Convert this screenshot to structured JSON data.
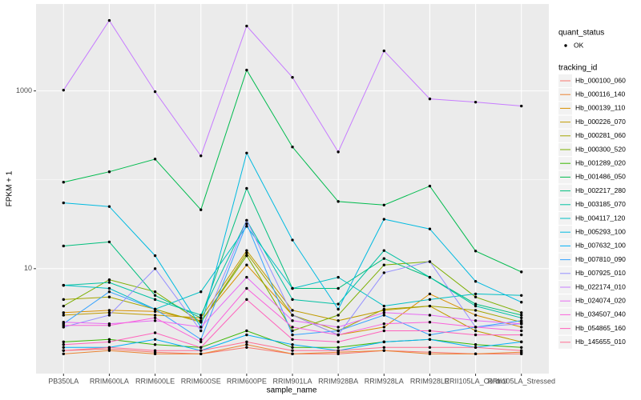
{
  "chart_data": {
    "type": "line",
    "xlabel": "sample_name",
    "ylabel": "FPKM + 1",
    "log_y": true,
    "grid": true,
    "point_color": "#000000",
    "shape_legend": {
      "title": "quant_status",
      "labels": [
        "OK"
      ]
    },
    "legend_title": "tracking_id",
    "legend_position": "right",
    "categories": [
      "PB350LA",
      "RRIM600LA",
      "RRIM600LE",
      "RRIM600SE",
      "RRIM600PE",
      "RRIM901LA",
      "RRIM928BA",
      "RRIM928LA",
      "RRIM928LE",
      "RRII105LA_Control",
      "RRII105LA_Stressed"
    ],
    "ylim": [
      0.66,
      9500
    ],
    "yticks": [
      10,
      1000
    ],
    "series": [
      {
        "name": "Hb_000100_060",
        "color": "#F8766D",
        "values": [
          1.2,
          1.25,
          1.15,
          1.1,
          1.3,
          1.1,
          1.1,
          1.2,
          1.15,
          1.1,
          1.1
        ]
      },
      {
        "name": "Hb_000116_140",
        "color": "#EA8331",
        "values": [
          1.1,
          1.2,
          1.1,
          1.1,
          1.4,
          1.1,
          1.15,
          1.2,
          1.1,
          1.1,
          1.15
        ]
      },
      {
        "name": "Hb_000139_110",
        "color": "#D89000",
        "values": [
          3.2,
          3.4,
          3.3,
          2.6,
          11,
          3.0,
          1.8,
          2.2,
          5.2,
          3.0,
          2.2
        ]
      },
      {
        "name": "Hb_000226_070",
        "color": "#C09B00",
        "values": [
          3.0,
          3.2,
          3.0,
          2.8,
          16,
          3.4,
          2.6,
          3.4,
          3.8,
          2.0,
          1.5
        ]
      },
      {
        "name": "Hb_000281_060",
        "color": "#A3A500",
        "values": [
          4.5,
          4.8,
          3.5,
          2.5,
          15,
          3.0,
          2.0,
          3.5,
          3.8,
          3.4,
          2.5
        ]
      },
      {
        "name": "Hb_000300_520",
        "color": "#7CAE00",
        "values": [
          3.8,
          7.5,
          5.5,
          2.5,
          14,
          2.0,
          3.0,
          11,
          12,
          4.8,
          3.2
        ]
      },
      {
        "name": "Hb_001289_020",
        "color": "#39B600",
        "values": [
          1.5,
          1.6,
          1.4,
          1.3,
          2.0,
          1.3,
          1.3,
          1.5,
          1.6,
          1.4,
          1.3
        ]
      },
      {
        "name": "Hb_001486_050",
        "color": "#00BB4E",
        "values": [
          94,
          123,
          171,
          46,
          1715,
          234,
          57,
          52,
          85,
          15.8,
          9.2
        ]
      },
      {
        "name": "Hb_002217_280",
        "color": "#00BF7D",
        "values": [
          18,
          20,
          5,
          2.8,
          80,
          6,
          6,
          13,
          8,
          4,
          3
        ]
      },
      {
        "name": "Hb_003185_070",
        "color": "#00C1A3",
        "values": [
          6.5,
          7.0,
          4.5,
          3.0,
          35,
          4.5,
          4.0,
          16,
          8,
          3.8,
          2.8
        ]
      },
      {
        "name": "Hb_004117_120",
        "color": "#00BFC4",
        "values": [
          6.5,
          6.0,
          3.5,
          5.5,
          30,
          6,
          8,
          3.8,
          4.5,
          5.2,
          5.0
        ]
      },
      {
        "name": "Hb_005293_100",
        "color": "#00BAE0",
        "values": [
          55,
          50,
          14,
          2.2,
          200,
          21,
          3.5,
          36,
          28,
          7.2,
          4.2
        ]
      },
      {
        "name": "Hb_007632_100",
        "color": "#00B0F6",
        "values": [
          1.3,
          1.3,
          1.6,
          1.2,
          1.8,
          1.4,
          1.2,
          1.5,
          1.6,
          1.3,
          1.5
        ]
      },
      {
        "name": "Hb_007810_090",
        "color": "#35A2FF",
        "values": [
          2.4,
          5.5,
          3.5,
          1.6,
          32,
          1.8,
          2.0,
          3.0,
          1.8,
          2.2,
          2.6
        ]
      },
      {
        "name": "Hb_007925_010",
        "color": "#9590FF",
        "values": [
          2.2,
          3.0,
          10,
          2.0,
          35,
          3.0,
          1.8,
          9,
          12,
          2.2,
          2.4
        ]
      },
      {
        "name": "Hb_022174_010",
        "color": "#C77CFF",
        "values": [
          1020,
          6200,
          980,
          186,
          5370,
          1420,
          206,
          2820,
          813,
          748,
          676
        ]
      },
      {
        "name": "Hb_024074_020",
        "color": "#E76BF3",
        "values": [
          2.5,
          2.4,
          2.6,
          2.2,
          8,
          2.6,
          2.2,
          3.2,
          3.0,
          2.6,
          2.4
        ]
      },
      {
        "name": "Hb_034507_040",
        "color": "#FA62DB",
        "values": [
          2.3,
          2.3,
          2.8,
          1.5,
          6,
          2.2,
          1.8,
          2.4,
          2.5,
          2.2,
          2.0
        ]
      },
      {
        "name": "Hb_054865_160",
        "color": "#FF62BC",
        "values": [
          1.4,
          1.5,
          1.9,
          1.3,
          4.5,
          1.6,
          1.5,
          2.0,
          2.0,
          1.8,
          1.8
        ]
      },
      {
        "name": "Hb_145655_010",
        "color": "#FF6C91",
        "values": [
          1.2,
          1.3,
          1.2,
          1.2,
          1.5,
          1.2,
          1.2,
          1.3,
          1.3,
          1.3,
          1.2
        ]
      }
    ]
  }
}
